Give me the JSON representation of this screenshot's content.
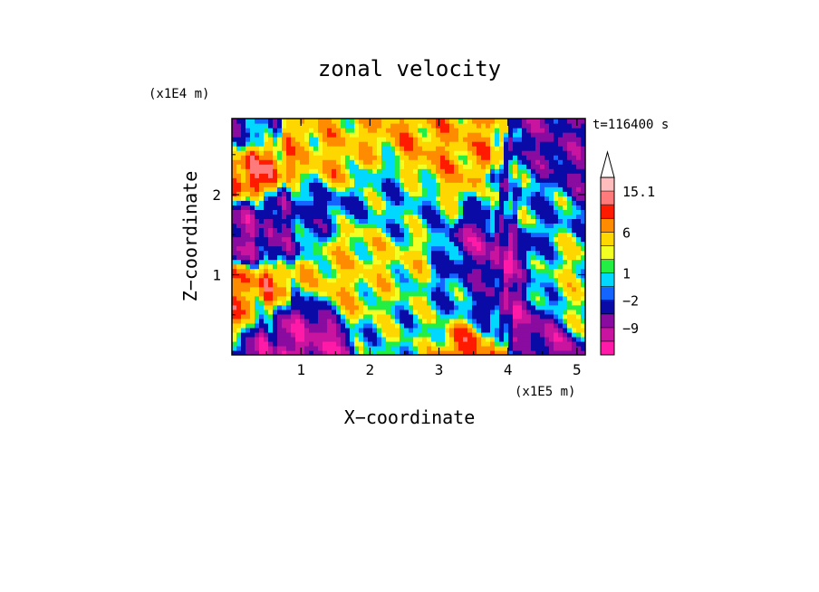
{
  "chart_data": {
    "type": "heatmap",
    "title": "zonal velocity",
    "xlabel": "X−coordinate",
    "ylabel": "Z−coordinate",
    "x_scale_label": "(x1E5 m)",
    "y_scale_label": "(x1E4 m)",
    "time_label": "t=116400 s",
    "xlim": [
      0,
      5.12
    ],
    "ylim": [
      0,
      2.95
    ],
    "x_ticks": [
      1,
      2,
      3,
      4,
      5
    ],
    "x_tick_labels": [
      "1",
      "2",
      "3",
      "4",
      "5"
    ],
    "y_ticks": [
      1,
      2
    ],
    "y_tick_labels": [
      "1",
      "2"
    ],
    "colorbar": {
      "levels": [
        -15.1,
        -12,
        -9,
        -6,
        -2,
        -1,
        1,
        2,
        3,
        6,
        9,
        12,
        15.1
      ],
      "colors": [
        "#ff1aa8",
        "#c8149e",
        "#8a0ba0",
        "#0a0aa6",
        "#1464ff",
        "#00d8ff",
        "#22ee44",
        "#f2ff22",
        "#ffd700",
        "#ff8c00",
        "#ff1a00",
        "#ff7a7a",
        "#ffbcbc"
      ],
      "tick_labels": [
        "15.1",
        "6",
        "1",
        "−2",
        "−9"
      ],
      "tick_values": [
        15.1,
        6,
        1,
        -2,
        -9
      ],
      "extend_top": true
    },
    "field_description": [
      {
        "x": 0.2,
        "z": 2.3,
        "u": 11
      },
      {
        "x": 0.35,
        "z": 1.6,
        "u": -8
      },
      {
        "x": 0.75,
        "z": 0.3,
        "u": -10
      },
      {
        "x": 1.6,
        "z": 1.1,
        "u": 4
      },
      {
        "x": 2.2,
        "z": 1.1,
        "u": 3
      },
      {
        "x": 2.4,
        "z": 1.9,
        "u": 0
      },
      {
        "x": 2.7,
        "z": 0.5,
        "u": 1
      },
      {
        "x": 3.5,
        "z": 0.8,
        "u": -2
      },
      {
        "x": 3.95,
        "z": 1.1,
        "u": -10
      },
      {
        "x": 4.0,
        "z": 0.4,
        "u": -9
      },
      {
        "x": 3.6,
        "z": 0.1,
        "u": 10
      },
      {
        "x": 4.6,
        "z": 1.0,
        "u": 2
      },
      {
        "x": 4.95,
        "z": 2.6,
        "u": -6
      },
      {
        "x": 3.0,
        "z": 2.6,
        "u": 6
      },
      {
        "x": 1.3,
        "z": 2.6,
        "u": 5
      },
      {
        "x": 1.0,
        "z": 1.7,
        "u": -3
      },
      {
        "x": 0.4,
        "z": 0.7,
        "u": 8
      },
      {
        "x": 4.3,
        "z": 1.8,
        "u": -1
      },
      {
        "x": 0.05,
        "z": 2.8,
        "u": -4
      }
    ]
  }
}
